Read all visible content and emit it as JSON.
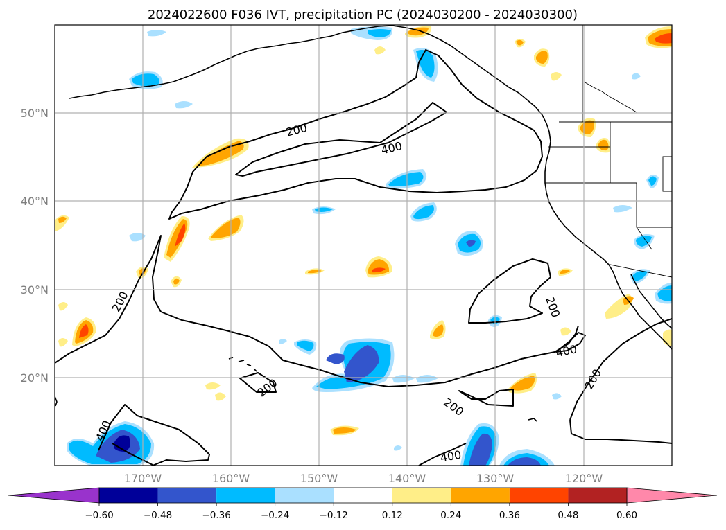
{
  "title": "2024022600 F036 IVT, precipitation PC (2024030200 - 2024030300)",
  "map": {
    "lat_labels": [
      "50°N",
      "40°N",
      "30°N",
      "20°N"
    ],
    "lon_labels": [
      "170°W",
      "160°W",
      "150°W",
      "140°W",
      "130°W",
      "120°W"
    ],
    "grid_color": "#b0b0b0"
  },
  "ivt_contour_labels": [
    "200",
    "400",
    "200",
    "200",
    "400",
    "200",
    "200",
    "400",
    "400"
  ],
  "colorbar": {
    "tick_labels": [
      "−0.60",
      "−0.48",
      "−0.36",
      "−0.24",
      "−0.12",
      "0.12",
      "0.24",
      "0.36",
      "0.48",
      "0.60"
    ],
    "colors": [
      "#9933cc",
      "#000099",
      "#3355cc",
      "#00bbff",
      "#aae0ff",
      "#ffffff",
      "#ffee88",
      "#ffa500",
      "#ff4400",
      "#b22222",
      "#ff88aa"
    ]
  }
}
